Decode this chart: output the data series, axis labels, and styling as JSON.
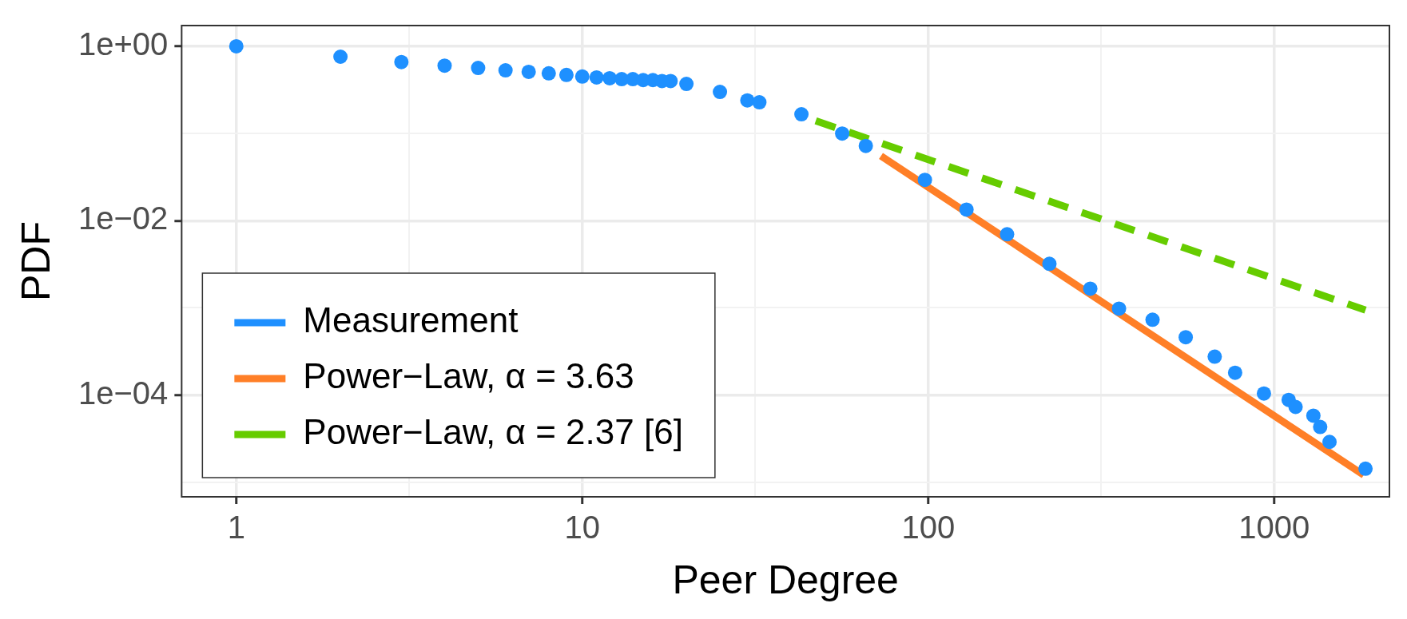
{
  "chart_data": {
    "type": "scatter",
    "xlabel": "Peer Degree",
    "ylabel": "PDF",
    "log": "xy",
    "grid": true,
    "legend": "bottom left",
    "xlim": [
      0.695,
      2153
    ],
    "xticks": [
      1,
      {
        "value": 3.162,
        "label": null
      },
      10,
      {
        "value": 31.62,
        "label": null
      },
      100,
      {
        "value": 316.2,
        "label": null
      },
      1000
    ],
    "ylim": [
      6.8e-06,
      1.73
    ],
    "yticks": [
      {
        "value": 1,
        "label": "1e+00"
      },
      {
        "value": 0.1,
        "label": null
      },
      {
        "value": 0.01,
        "label": "1e−02"
      },
      {
        "value": 0.001,
        "label": null
      },
      {
        "value": 0.0001,
        "label": "1e−04"
      },
      {
        "value": 1e-05,
        "label": null
      }
    ],
    "series": [
      {
        "name": "Measurement",
        "type": "scatter",
        "marker": "circle",
        "color": "#1e90ff",
        "x": [
          1,
          2,
          3,
          4,
          5,
          6,
          7,
          8,
          9,
          10,
          11,
          12,
          13,
          14,
          15,
          16,
          17,
          18,
          20,
          25,
          30,
          32.5,
          43,
          56.4,
          66,
          97.8,
          129,
          169,
          224,
          294,
          356,
          445,
          555,
          673,
          771,
          934,
          1101,
          1153,
          1298,
          1358,
          1445,
          1836
        ],
        "values": [
          1,
          0.76,
          0.66,
          0.6,
          0.565,
          0.53,
          0.51,
          0.49,
          0.47,
          0.45,
          0.44,
          0.43,
          0.42,
          0.42,
          0.41,
          0.41,
          0.4,
          0.4,
          0.37,
          0.3,
          0.24,
          0.228,
          0.166,
          0.1,
          0.072,
          0.0294,
          0.0134,
          0.00698,
          0.0032,
          0.00166,
          0.00098,
          0.00073,
          0.00046,
          0.000275,
          0.00018,
          0.000104,
          8.8e-05,
          7.3e-05,
          5.8e-05,
          4.3e-05,
          2.9e-05,
          1.43e-05
        ]
      },
      {
        "name": "Power−Law, α = 3.63",
        "type": "line",
        "marker": "none",
        "line_style": "solid",
        "color": "#ff7f27",
        "x": [
          73,
          1815
        ],
        "values": [
          0.0553,
          1.21e-05
        ]
      },
      {
        "name": "Power−Law, α = 2.37 [6]",
        "type": "line",
        "marker": "none",
        "line_style": "dashed",
        "color": "#66cc00",
        "x": [
          47.3,
          1836
        ],
        "values": [
          0.14,
          0.00094
        ]
      }
    ]
  }
}
